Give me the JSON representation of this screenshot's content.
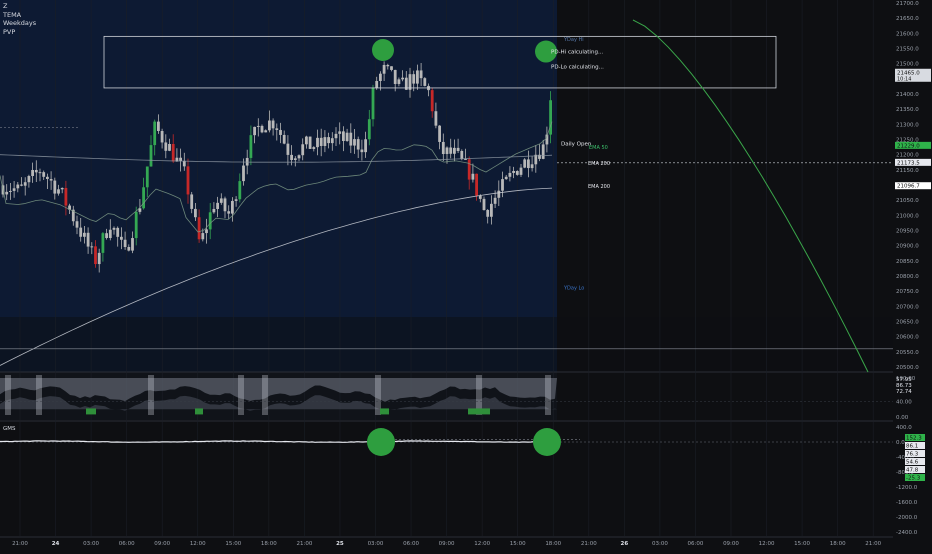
{
  "indicators": {
    "symbol": "Z",
    "list": [
      "TEMA",
      "Weekdays",
      "PVP"
    ]
  },
  "colors": {
    "bg": "#0e0f12",
    "session": "#0d1a33",
    "up": "#34a853",
    "down": "#c62828",
    "neutral": "#b8b8b8",
    "grid": "#1b1e26",
    "ema": "#9aa0a6",
    "text": "#c8ccd4",
    "marker": "#2e9e3f",
    "yday": "#3a74c9",
    "price_box": "#2fb34a"
  },
  "chart_data": [
    {
      "type": "candlestick",
      "ylim": [
        20500,
        21700
      ],
      "y_ticks": [
        "21700.0",
        "21650.0",
        "21600.0",
        "21550.0",
        "21500.0",
        "21450.0",
        "21400.0",
        "21350.0",
        "21300.0",
        "21250.0",
        "21200.0",
        "21150.0",
        "21100.0",
        "21050.0",
        "21000.0",
        "20950.0",
        "20900.0",
        "20850.0",
        "20800.0",
        "20750.0",
        "20700.0",
        "20650.0",
        "20600.0",
        "20550.0",
        "20500.0"
      ],
      "x_ticks": [
        "21:00",
        "24",
        "03:00",
        "06:00",
        "09:00",
        "12:00",
        "15:00",
        "18:00",
        "21:00",
        "25",
        "03:00",
        "06:00",
        "09:00",
        "12:00",
        "15:00",
        "18:00",
        "21:00",
        "26",
        "03:00",
        "06:00",
        "09:00",
        "12:00",
        "15:00",
        "18:00",
        "21:00"
      ],
      "candles_first5": [
        {
          "o": 21094,
          "h": 21130,
          "l": 21060,
          "c": 21120
        },
        {
          "o": 21120,
          "h": 21150,
          "l": 21085,
          "c": 21095
        },
        {
          "o": 21095,
          "h": 21110,
          "l": 21040,
          "c": 21050
        },
        {
          "o": 21050,
          "h": 21080,
          "l": 21010,
          "c": 21070
        },
        {
          "o": 21070,
          "h": 21105,
          "l": 21050,
          "c": 21090
        }
      ],
      "last_price": 21465.0,
      "price_labels": [
        {
          "text": "21465.0",
          "sub": "10:14"
        },
        {
          "text": "21229.0"
        },
        {
          "text": "21173.5"
        },
        {
          "text": "21096.7"
        }
      ],
      "annotations": [
        {
          "text": "YDay Hi",
          "price": 21575
        },
        {
          "text": "PD-Hi calculating...",
          "price": 21540
        },
        {
          "text": "PD-Lo calculating...",
          "price": 21490
        },
        {
          "text": "Daily Open",
          "price": 21236
        },
        {
          "text": "EMA 50",
          "price": 21229
        },
        {
          "text": "EMA 200",
          "price": 21173
        },
        {
          "text": "EMA 200",
          "price": 21096
        },
        {
          "text": "YDay Lo",
          "price": 20755
        }
      ],
      "markers": [
        {
          "x_label": "03:00 (25)",
          "price": 21545
        },
        {
          "x_label": "18:00 (25)",
          "price": 21540
        }
      ]
    },
    {
      "type": "area",
      "ylim": [
        0,
        100
      ],
      "y_ticks": [
        "100.00",
        "40.00",
        "0.00"
      ],
      "values_labels": [
        "57.95",
        "86.73",
        "72.74"
      ]
    },
    {
      "type": "line",
      "title": "GMS",
      "ylim": [
        -2400,
        400
      ],
      "y_ticks": [
        "400.0",
        "0.0",
        "-400.0",
        "-800.0",
        "-1200.0",
        "-1600.0",
        "-2000.0",
        "-2400.0"
      ],
      "value_labels": [
        "152.3",
        "86.1",
        "76.3",
        "54.6",
        "47.8",
        "-25.3"
      ]
    }
  ]
}
